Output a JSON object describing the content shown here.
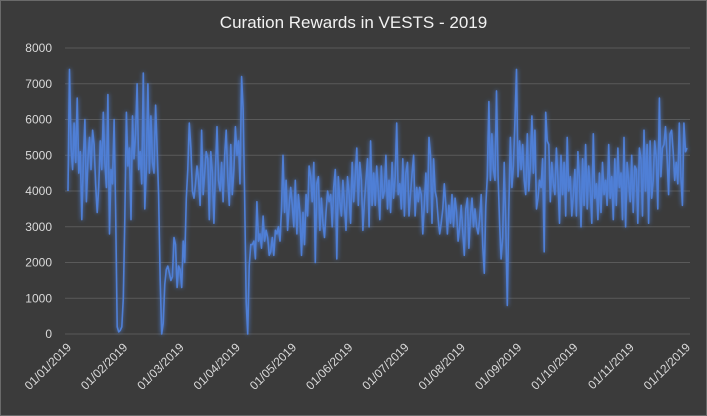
{
  "chart_data": {
    "type": "line",
    "title": "Curation Rewards in VESTS - 2019",
    "xlabel": "",
    "ylabel": "",
    "ylim": [
      0,
      8000
    ],
    "yticks": [
      0,
      1000,
      2000,
      3000,
      4000,
      5000,
      6000,
      7000,
      8000
    ],
    "xticks": [
      "01/01/2019",
      "01/02/2019",
      "01/03/2019",
      "01/04/2019",
      "01/05/2019",
      "01/06/2019",
      "01/07/2019",
      "01/08/2019",
      "01/09/2019",
      "01/10/2019",
      "01/11/2019",
      "01/12/2019"
    ],
    "grid": true,
    "legend": "none",
    "series_color": "#4f7fd6",
    "series": [
      {
        "values": [
          4000,
          7400,
          5200,
          4600,
          5900,
          4800,
          6600,
          4500,
          5100,
          3200,
          4900,
          6000,
          3700,
          4900,
          5500,
          4600,
          5700,
          5300,
          4200,
          3400,
          4100,
          5400,
          4600,
          6200,
          4800,
          4100,
          6700,
          2800,
          4600,
          4200,
          6000,
          3500,
          200,
          60,
          100,
          200,
          1000,
          3200,
          6200,
          4700,
          5200,
          3200,
          6100,
          4900,
          5600,
          7000,
          4600,
          5100,
          4200,
          7300,
          3500,
          4600,
          7000,
          4500,
          6100,
          4800,
          4500,
          6400,
          5200,
          3900,
          1500,
          0,
          300,
          1400,
          1800,
          1900,
          1700,
          1500,
          1600,
          2700,
          2500,
          1300,
          1900,
          1800,
          1300,
          2600,
          2000,
          3800,
          4600,
          5900,
          5200,
          4000,
          3800,
          4200,
          4700,
          4300,
          3600,
          5700,
          3900,
          4500,
          5100,
          4900,
          3200,
          5100,
          4500,
          3100,
          4600,
          5800,
          4300,
          4000,
          4800,
          3700,
          5000,
          5700,
          4400,
          3600,
          5300,
          3900,
          4600,
          5800,
          5000,
          5400,
          4200,
          7200,
          6300,
          3900,
          900,
          0,
          1900,
          2500,
          2500,
          2600,
          2100,
          3700,
          2600,
          2800,
          2400,
          3300,
          2600,
          2900,
          2700,
          2200,
          2300,
          2700,
          2200,
          2900,
          2800,
          3000,
          2600,
          3500,
          5000,
          3400,
          4300,
          2900,
          3600,
          4100,
          3600,
          3000,
          4300,
          2800,
          3900,
          3400,
          2200,
          3400,
          2500,
          3900,
          3300,
          4700,
          4400,
          3700,
          4800,
          2000,
          4200,
          4400,
          2900,
          3800,
          3100,
          2700,
          3400,
          4000,
          3700,
          3900,
          3000,
          4100,
          4600,
          2100,
          4400,
          3700,
          3300,
          4300,
          3600,
          2900,
          4400,
          3900,
          3100,
          4800,
          3700,
          4400,
          5200,
          3600,
          4800,
          4300,
          2900,
          3700,
          4300,
          4900,
          3000,
          5400,
          3600,
          4500,
          3600,
          4700,
          4000,
          3200,
          4700,
          3800,
          4000,
          5000,
          3500,
          4300,
          3400,
          4800,
          3800,
          4400,
          5900,
          3900,
          4200,
          3500,
          4900,
          3300,
          4500,
          4800,
          3300,
          3900,
          4500,
          5000,
          3300,
          4100,
          3700,
          4100,
          3900,
          2800,
          3600,
          4500,
          3400,
          5500,
          5000,
          3100,
          4900,
          4000,
          3800,
          3200,
          2800,
          3100,
          3500,
          4200,
          3600,
          2800,
          3600,
          3100,
          3900,
          3000,
          3800,
          3400,
          2600,
          3000,
          3600,
          2900,
          2200,
          3500,
          3800,
          2400,
          3300,
          3800,
          3000,
          3500,
          3000,
          2800,
          3200,
          3900,
          2500,
          1700,
          3600,
          4400,
          6500,
          4300,
          5600,
          4600,
          4300,
          6800,
          4400,
          3100,
          2100,
          2700,
          4800,
          3000,
          800,
          3500,
          5500,
          4100,
          4700,
          6000,
          7400,
          4400,
          5400,
          4600,
          5300,
          4300,
          3900,
          5600,
          4000,
          4700,
          6100,
          4500,
          5700,
          3500,
          3800,
          4300,
          4100,
          4900,
          2300,
          6200,
          5400,
          5300,
          3700,
          4800,
          4200,
          3900,
          5200,
          4300,
          3100,
          5000,
          3900,
          4800,
          3300,
          5500,
          4000,
          4400,
          3300,
          3900,
          4600,
          3300,
          5100,
          4300,
          3000,
          4900,
          3600,
          5300,
          3500,
          4700,
          4100,
          3100,
          5600,
          3800,
          4200,
          3200,
          4500,
          3400,
          4800,
          3900,
          4300,
          3600,
          5300,
          3800,
          4400,
          3200,
          4900,
          3600,
          5200,
          4100,
          4500,
          3200,
          5500,
          3000,
          4800,
          4300,
          3700,
          5000,
          3400,
          4700,
          4600,
          3100,
          5200,
          4900,
          3300,
          5700,
          4000,
          5300,
          3100,
          5400,
          3800,
          4300,
          5400,
          4900,
          3500,
          6600,
          4400,
          5200,
          5300,
          5800,
          5000,
          3900,
          5600,
          5700,
          5100,
          4300,
          4800,
          4200,
          5900,
          4400,
          3600,
          5900,
          5100,
          5200
        ],
        "color": "#4f7fd6"
      }
    ]
  }
}
